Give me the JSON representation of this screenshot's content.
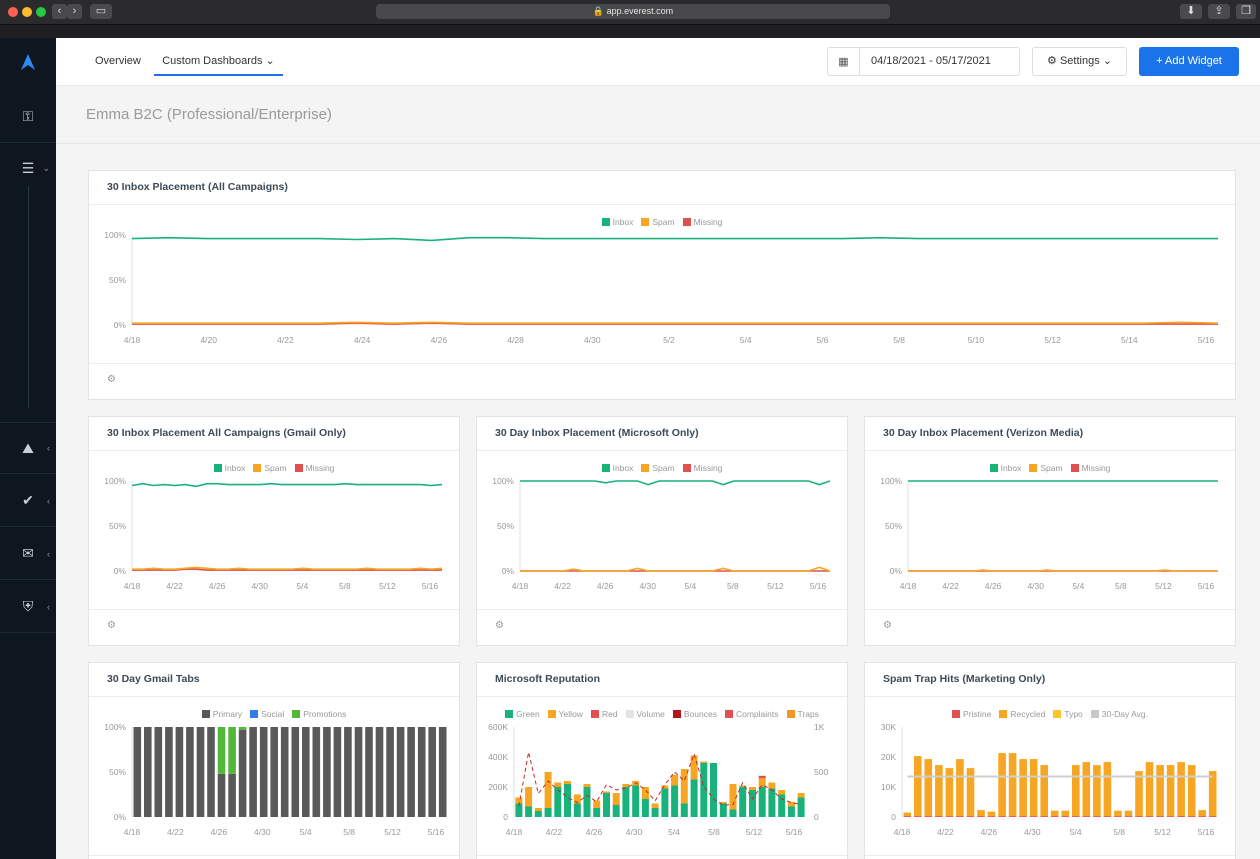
{
  "browser": {
    "url": "app.everest.com"
  },
  "nav": {
    "tabs": [
      {
        "label": "Overview"
      },
      {
        "label": "Custom Dashboards ⌄"
      }
    ],
    "date_range": "04/18/2021 - 05/17/2021",
    "settings_label": "Settings ⌄",
    "add_widget_label": "+ Add Widget"
  },
  "page": {
    "title": "Emma B2C (Professional/Enterprise)"
  },
  "colors": {
    "inbox": "#19b27b",
    "spam": "#f6a623",
    "missing": "#e0504f",
    "primary": "#595959",
    "social": "#2f7fe6",
    "promotions": "#53b83a",
    "accent": "#1a73e8"
  },
  "widgets": [
    {
      "title": "30 Inbox Placement (All Campaigns)",
      "legend": [
        "Inbox",
        "Spam",
        "Missing"
      ]
    },
    {
      "title": "30 Inbox Placement All Campaigns (Gmail Only)",
      "legend": [
        "Inbox",
        "Spam",
        "Missing"
      ]
    },
    {
      "title": "30 Day Inbox Placement (Microsoft Only)",
      "legend": [
        "Inbox",
        "Spam",
        "Missing"
      ]
    },
    {
      "title": "30 Day Inbox Placement (Verizon Media)",
      "legend": [
        "Inbox",
        "Spam",
        "Missing"
      ]
    },
    {
      "title": "30 Day Gmail Tabs",
      "legend": [
        "Primary",
        "Social",
        "Promotions"
      ]
    },
    {
      "title": "Microsoft Reputation",
      "legend": [
        "Green",
        "Yellow",
        "Red",
        "Volume",
        "Bounces",
        "Complaints",
        "Traps"
      ]
    },
    {
      "title": "Spam Trap Hits (Marketing Only)",
      "legend": [
        "Pristine",
        "Recycled",
        "Typo",
        "30-Day Avg."
      ]
    }
  ],
  "chart_data": [
    {
      "type": "line",
      "title": "30 Inbox Placement (All Campaigns)",
      "x_ticks": [
        "4/18",
        "4/20",
        "4/22",
        "4/24",
        "4/26",
        "4/28",
        "4/30",
        "5/2",
        "5/4",
        "5/6",
        "5/8",
        "5/10",
        "5/12",
        "5/14",
        "5/16"
      ],
      "y_ticks": [
        "100%",
        "50%",
        "0%"
      ],
      "ylim": [
        0,
        100
      ],
      "series": [
        {
          "name": "Inbox",
          "values": [
            96,
            97,
            96,
            96,
            96,
            96,
            95,
            96,
            94,
            97,
            97,
            96,
            96,
            96,
            96,
            96,
            96,
            96,
            96,
            96,
            97,
            96,
            96,
            96,
            96,
            96,
            96,
            96,
            96,
            96
          ]
        },
        {
          "name": "Spam",
          "values": [
            2,
            2,
            2,
            2,
            2,
            2,
            3,
            2,
            3,
            2,
            2,
            2,
            2,
            2,
            2,
            2,
            2,
            2,
            2,
            2,
            2,
            2,
            2,
            2,
            2,
            2,
            2,
            2,
            3,
            2
          ]
        },
        {
          "name": "Missing",
          "values": [
            1,
            1,
            1,
            1,
            1,
            1,
            2,
            1,
            2,
            1,
            1,
            1,
            1,
            1,
            1,
            1,
            1,
            1,
            1,
            1,
            1,
            1,
            1,
            1,
            1,
            1,
            1,
            1,
            1,
            1
          ]
        }
      ]
    },
    {
      "type": "line",
      "title": "30 Inbox Placement All Campaigns (Gmail Only)",
      "x_ticks": [
        "4/18",
        "4/22",
        "4/26",
        "4/30",
        "5/4",
        "5/8",
        "5/12",
        "5/16"
      ],
      "y_ticks": [
        "100%",
        "50%",
        "0%"
      ],
      "ylim": [
        0,
        100
      ],
      "series": [
        {
          "name": "Inbox",
          "values": [
            95,
            97,
            95,
            96,
            95,
            96,
            94,
            97,
            97,
            96,
            96,
            96,
            96,
            97,
            96,
            96,
            96,
            96,
            96,
            96,
            97,
            96,
            96,
            96,
            96,
            96,
            96,
            96,
            95,
            96
          ]
        },
        {
          "name": "Spam",
          "values": [
            2,
            2,
            3,
            2,
            2,
            3,
            4,
            3,
            2,
            2,
            3,
            2,
            2,
            2,
            2,
            2,
            3,
            2,
            2,
            2,
            2,
            2,
            3,
            2,
            2,
            2,
            2,
            3,
            2,
            3
          ]
        },
        {
          "name": "Missing",
          "values": [
            1,
            1,
            1,
            1,
            1,
            2,
            2,
            1,
            1,
            1,
            1,
            1,
            1,
            1,
            1,
            1,
            1,
            1,
            1,
            1,
            1,
            1,
            1,
            1,
            1,
            1,
            1,
            1,
            1,
            1
          ]
        }
      ]
    },
    {
      "type": "line",
      "title": "30 Day Inbox Placement (Microsoft Only)",
      "x_ticks": [
        "4/18",
        "4/22",
        "4/26",
        "4/30",
        "5/4",
        "5/8",
        "5/12",
        "5/16"
      ],
      "y_ticks": [
        "100%",
        "50%",
        "0%"
      ],
      "ylim": [
        0,
        100
      ],
      "series": [
        {
          "name": "Inbox",
          "values": [
            100,
            100,
            100,
            100,
            100,
            100,
            100,
            100,
            98,
            100,
            100,
            100,
            96,
            100,
            100,
            100,
            100,
            100,
            100,
            96,
            100,
            100,
            100,
            100,
            100,
            100,
            100,
            100,
            96,
            100
          ]
        },
        {
          "name": "Spam",
          "values": [
            0,
            0,
            0,
            0,
            0,
            2,
            0,
            0,
            0,
            0,
            0,
            3,
            0,
            0,
            0,
            0,
            0,
            0,
            0,
            3,
            0,
            0,
            0,
            0,
            0,
            0,
            0,
            0,
            4,
            0
          ]
        },
        {
          "name": "Missing",
          "values": [
            0,
            0,
            0,
            0,
            0,
            0,
            0,
            0,
            0,
            0,
            0,
            0,
            0,
            0,
            0,
            0,
            0,
            0,
            0,
            0,
            0,
            0,
            0,
            0,
            0,
            0,
            0,
            0,
            0,
            0
          ]
        }
      ]
    },
    {
      "type": "line",
      "title": "30 Day Inbox Placement (Verizon Media)",
      "x_ticks": [
        "4/18",
        "4/22",
        "4/26",
        "4/30",
        "5/4",
        "5/8",
        "5/12",
        "5/16"
      ],
      "y_ticks": [
        "100%",
        "50%",
        "0%"
      ],
      "ylim": [
        0,
        100
      ],
      "series": [
        {
          "name": "Inbox",
          "values": [
            100,
            100,
            100,
            100,
            100,
            100,
            100,
            100,
            100,
            100,
            100,
            100,
            100,
            100,
            100,
            100,
            100,
            100,
            100,
            100,
            100,
            100,
            100,
            100,
            100,
            100,
            100,
            100,
            100,
            100
          ]
        },
        {
          "name": "Spam",
          "values": [
            0,
            0,
            0,
            0,
            0,
            0,
            0,
            1,
            0,
            0,
            0,
            0,
            0,
            1,
            0,
            0,
            0,
            0,
            0,
            0,
            0,
            0,
            0,
            0,
            1,
            0,
            0,
            0,
            0,
            0
          ]
        },
        {
          "name": "Missing",
          "values": [
            0,
            0,
            0,
            0,
            0,
            0,
            0,
            0,
            0,
            0,
            0,
            0,
            0,
            0,
            0,
            0,
            0,
            0,
            0,
            0,
            0,
            0,
            0,
            0,
            0,
            0,
            0,
            0,
            0,
            0
          ]
        }
      ]
    },
    {
      "type": "bar",
      "stacked": true,
      "title": "30 Day Gmail Tabs",
      "x_ticks": [
        "4/18",
        "4/22",
        "4/26",
        "4/30",
        "5/4",
        "5/8",
        "5/12",
        "5/16"
      ],
      "y_ticks": [
        "100%",
        "50%",
        "0%"
      ],
      "ylim": [
        0,
        100
      ],
      "series": [
        {
          "name": "Primary",
          "values": [
            100,
            100,
            100,
            100,
            100,
            100,
            100,
            100,
            48,
            48,
            97,
            100,
            100,
            100,
            100,
            100,
            100,
            100,
            100,
            100,
            100,
            100,
            100,
            100,
            100,
            100,
            100,
            100,
            100,
            100
          ]
        },
        {
          "name": "Social",
          "values": [
            0,
            0,
            0,
            0,
            0,
            0,
            0,
            0,
            0,
            0,
            0,
            0,
            0,
            0,
            0,
            0,
            0,
            0,
            0,
            0,
            0,
            0,
            0,
            0,
            0,
            0,
            0,
            0,
            0,
            0
          ]
        },
        {
          "name": "Promotions",
          "values": [
            0,
            0,
            0,
            0,
            0,
            0,
            0,
            0,
            52,
            52,
            3,
            0,
            0,
            0,
            0,
            0,
            0,
            0,
            0,
            0,
            0,
            0,
            0,
            0,
            0,
            0,
            0,
            0,
            0,
            0
          ]
        }
      ]
    },
    {
      "type": "bar",
      "stacked": true,
      "title": "Microsoft Reputation",
      "x_ticks": [
        "4/18",
        "4/22",
        "4/26",
        "4/30",
        "5/4",
        "5/8",
        "5/12",
        "5/16"
      ],
      "y_ticks": [
        "600K",
        "400K",
        "200K",
        "0"
      ],
      "y2_ticks": [
        "1K",
        "500",
        "0"
      ],
      "ylim": [
        0,
        600000
      ],
      "y2lim": [
        0,
        1000
      ],
      "series": [
        {
          "name": "Green",
          "values": [
            90000,
            70000,
            40000,
            60000,
            200000,
            220000,
            90000,
            200000,
            60000,
            160000,
            80000,
            200000,
            210000,
            120000,
            60000,
            190000,
            210000,
            90000,
            250000,
            360000,
            360000,
            90000,
            50000,
            200000,
            180000,
            200000,
            190000,
            150000,
            70000,
            130000
          ]
        },
        {
          "name": "Yellow",
          "values": [
            40000,
            130000,
            20000,
            240000,
            30000,
            20000,
            60000,
            20000,
            50000,
            10000,
            80000,
            20000,
            30000,
            80000,
            30000,
            20000,
            70000,
            230000,
            160000,
            10000,
            0,
            10000,
            170000,
            10000,
            20000,
            60000,
            40000,
            30000,
            30000,
            30000
          ]
        },
        {
          "name": "Red",
          "values": [
            0,
            0,
            0,
            0,
            0,
            0,
            0,
            0,
            0,
            0,
            0,
            0,
            0,
            0,
            0,
            0,
            0,
            0,
            0,
            0,
            0,
            0,
            0,
            0,
            0,
            15000,
            0,
            0,
            0,
            0
          ]
        },
        {
          "name": "Volume",
          "values": [
            120,
            720,
            260,
            400,
            300,
            220,
            160,
            240,
            170,
            360,
            300,
            320,
            380,
            300,
            180,
            360,
            500,
            400,
            700,
            340,
            200,
            130,
            140,
            380,
            200,
            360,
            300,
            200,
            160,
            140
          ]
        }
      ]
    },
    {
      "type": "bar",
      "stacked": true,
      "title": "Spam Trap Hits (Marketing Only)",
      "x_ticks": [
        "4/18",
        "4/22",
        "4/26",
        "4/30",
        "5/4",
        "5/8",
        "5/12",
        "5/16"
      ],
      "y_ticks": [
        "30K",
        "20K",
        "10K",
        "0"
      ],
      "ylim": [
        0,
        30000
      ],
      "series": [
        {
          "name": "Pristine",
          "values": [
            300,
            300,
            300,
            300,
            300,
            300,
            300,
            300,
            300,
            300,
            300,
            300,
            300,
            300,
            300,
            300,
            300,
            300,
            300,
            300,
            300,
            300,
            300,
            300,
            300,
            300,
            300,
            300,
            300,
            300
          ]
        },
        {
          "name": "Recycled",
          "values": [
            1200,
            20000,
            19000,
            17000,
            16000,
            19000,
            16000,
            2000,
            1500,
            21000,
            21000,
            19000,
            19000,
            17000,
            1800,
            1800,
            17000,
            18000,
            17000,
            18000,
            1800,
            1800,
            15000,
            18000,
            17000,
            17000,
            18000,
            17000,
            2000,
            15000
          ]
        },
        {
          "name": "Typo",
          "values": [
            0,
            0,
            0,
            0,
            0,
            0,
            0,
            0,
            0,
            0,
            0,
            0,
            0,
            0,
            0,
            0,
            0,
            0,
            0,
            0,
            0,
            0,
            0,
            0,
            0,
            0,
            0,
            0,
            0,
            0
          ]
        },
        {
          "name": "30-Day Avg.",
          "values": [
            13500,
            13500,
            13500,
            13500,
            13500,
            13500,
            13500,
            13500,
            13500,
            13500,
            13500,
            13500,
            13500,
            13500,
            13500,
            13500,
            13500,
            13500,
            13500,
            13500,
            13500,
            13500,
            13500,
            13500,
            13500,
            13500,
            13500,
            13500,
            13500,
            13500
          ]
        }
      ]
    }
  ]
}
